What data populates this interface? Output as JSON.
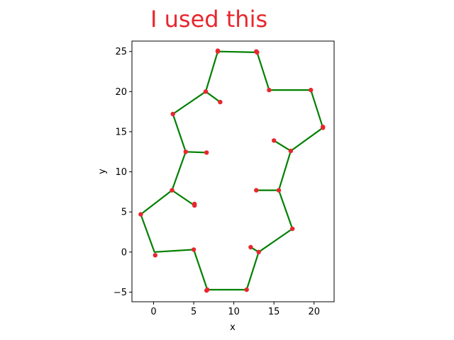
{
  "annotation": "I used this",
  "chart_data": {
    "type": "line",
    "xlabel": "x",
    "ylabel": "y",
    "xlim": [
      -2.7,
      22.5
    ],
    "ylim": [
      -6.2,
      26.3
    ],
    "xticks": [
      0,
      5,
      10,
      15,
      20
    ],
    "yticks": [
      -5,
      0,
      5,
      10,
      15,
      20,
      25
    ],
    "grid": false,
    "line_color": "#008000",
    "marker_color": "#e8272e",
    "series": [
      {
        "name": "",
        "points": [
          [
            5.1,
            5.8
          ],
          [
            2.3,
            7.7
          ],
          [
            4.0,
            12.5
          ],
          [
            2.4,
            17.2
          ],
          [
            6.5,
            20.0
          ],
          [
            8.3,
            18.7
          ]
        ]
      },
      {
        "name": "",
        "points": [
          [
            6.6,
            12.4
          ],
          [
            4.0,
            12.5
          ]
        ]
      },
      {
        "name": "",
        "points": [
          [
            6.5,
            20.0
          ],
          [
            8.0,
            25.0
          ],
          [
            12.9,
            24.9
          ],
          [
            14.4,
            20.2
          ],
          [
            19.6,
            20.2
          ],
          [
            21.1,
            15.5
          ],
          [
            17.1,
            12.6
          ],
          [
            15.0,
            13.9
          ]
        ]
      },
      {
        "name": "",
        "points": [
          [
            17.1,
            12.6
          ],
          [
            15.6,
            7.7
          ],
          [
            12.8,
            7.7
          ]
        ]
      },
      {
        "name": "",
        "points": [
          [
            15.6,
            7.7
          ],
          [
            17.3,
            2.9
          ],
          [
            13.1,
            0.0
          ],
          [
            12.1,
            0.6
          ]
        ]
      },
      {
        "name": "",
        "points": [
          [
            13.1,
            0.0
          ],
          [
            11.6,
            -4.7
          ],
          [
            6.7,
            -4.7
          ],
          [
            5.0,
            0.3
          ],
          [
            0.1,
            0.0
          ],
          [
            -1.6,
            4.7
          ],
          [
            2.3,
            7.7
          ]
        ]
      }
    ],
    "markers": [
      [
        8.0,
        25.0
      ],
      [
        8.0,
        25.1
      ],
      [
        12.9,
        24.9
      ],
      [
        12.8,
        25.0
      ],
      [
        14.4,
        20.2
      ],
      [
        19.6,
        20.2
      ],
      [
        21.1,
        15.5
      ],
      [
        21.1,
        15.6
      ],
      [
        17.1,
        12.6
      ],
      [
        15.0,
        13.9
      ],
      [
        15.6,
        7.7
      ],
      [
        12.8,
        7.7
      ],
      [
        17.3,
        2.9
      ],
      [
        13.1,
        0.0
      ],
      [
        12.1,
        0.6
      ],
      [
        11.6,
        -4.7
      ],
      [
        6.7,
        -4.7
      ],
      [
        6.6,
        -4.8
      ],
      [
        5.0,
        0.3
      ],
      [
        0.2,
        -0.4
      ],
      [
        -1.6,
        4.7
      ],
      [
        2.3,
        7.7
      ],
      [
        5.1,
        5.8
      ],
      [
        5.1,
        6.0
      ],
      [
        4.0,
        12.5
      ],
      [
        6.6,
        12.4
      ],
      [
        2.4,
        17.2
      ],
      [
        6.5,
        20.0
      ],
      [
        8.3,
        18.7
      ]
    ]
  }
}
